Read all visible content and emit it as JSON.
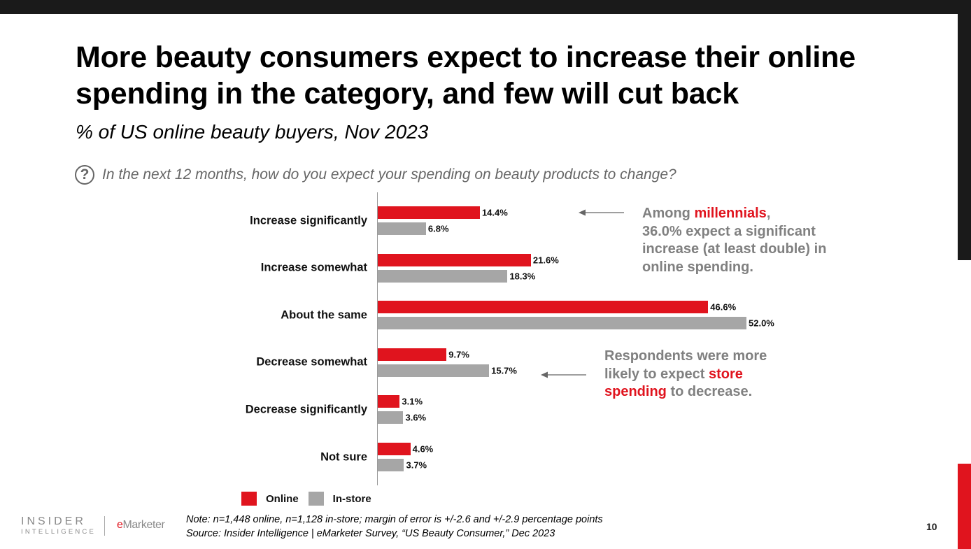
{
  "title": "More beauty consumers expect to increase their online spending in the category, and few will cut back",
  "subtitle": "% of US online beauty buyers, Nov 2023",
  "question": "In the next 12 months, how do you expect your spending on beauty products to change?",
  "colors": {
    "online": "#e0141e",
    "instore": "#a6a6a6",
    "annotation": "#808080",
    "highlight": "#e0141e"
  },
  "chart_data": {
    "type": "bar",
    "orientation": "horizontal",
    "categories": [
      "Increase significantly",
      "Increase somewhat",
      "About the same",
      "Decrease somewhat",
      "Decrease significantly",
      "Not sure"
    ],
    "series": [
      {
        "name": "Online",
        "values": [
          14.4,
          21.6,
          46.6,
          9.7,
          3.1,
          4.6
        ],
        "labels": [
          "14.4%",
          "21.6%",
          "46.6%",
          "9.7%",
          "3.1%",
          "4.6%"
        ],
        "color": "#e0141e"
      },
      {
        "name": "In-store",
        "values": [
          6.8,
          18.3,
          52.0,
          15.7,
          3.6,
          3.7
        ],
        "labels": [
          "6.8%",
          "18.3%",
          "52.0%",
          "15.7%",
          "3.6%",
          "3.7%"
        ],
        "color": "#a6a6a6"
      }
    ],
    "xlim": [
      0,
      52
    ],
    "grid": false,
    "legend": "bottom-left"
  },
  "annotations": {
    "millennials": {
      "pre": "Among ",
      "highlight": "millennials",
      "post": ",",
      "lines": [
        "36.0% expect a significant",
        "increase (at least double) in",
        "online spending."
      ]
    },
    "store": {
      "line1": "Respondents were more",
      "line2_pre": "likely to expect ",
      "line2_highlight": "store",
      "line3_highlight": "spending",
      "line3_post": " to decrease."
    }
  },
  "footer": {
    "note": "Note: n=1,448 online, n=1,128 in-store; margin of error is +/-2.6 and +/-2.9 percentage points",
    "source": "Source: Insider Intelligence | eMarketer Survey, “US Beauty Consumer,” Dec 2023"
  },
  "logo": {
    "insider_line1": "INSIDER",
    "insider_line2": "INTELLIGENCE",
    "emarketer_e": "e",
    "emarketer_rest": "Marketer"
  },
  "page_number": "10"
}
